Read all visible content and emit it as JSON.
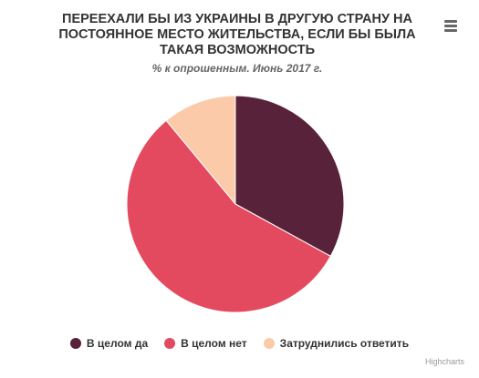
{
  "chart_data": {
    "type": "pie",
    "title": "ПЕРЕЕХАЛИ БЫ ИЗ УКРАИНЫ В ДРУГУЮ СТРАНУ НА ПОСТОЯННОЕ МЕСТО ЖИТЕЛЬСТВА, ЕСЛИ БЫ БЫЛА ТАКАЯ ВОЗМОЖНОСТЬ",
    "subtitle": "% к опрошенным. Июнь 2017 г.",
    "legend_position": "bottom-center",
    "slices": [
      {
        "name": "В целом да",
        "value": 33,
        "color": "#57223a"
      },
      {
        "name": "В целом нет",
        "value": 56,
        "color": "#e34a60"
      },
      {
        "name": "Затруднились ответить",
        "value": 11,
        "color": "#fbcba9"
      }
    ]
  },
  "menu": {
    "icon": "hamburger-menu-icon"
  },
  "credits": {
    "text": "Highcharts"
  }
}
